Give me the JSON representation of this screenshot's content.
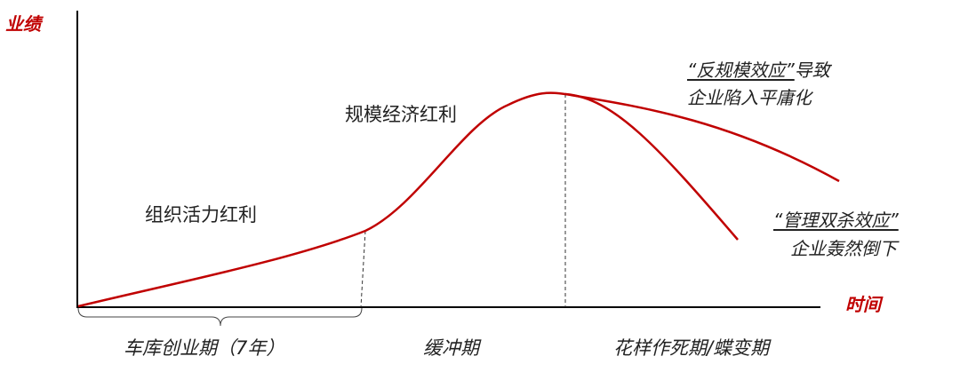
{
  "axes": {
    "y_label": "业绩",
    "x_label": "时间"
  },
  "colors": {
    "accent": "#c00000",
    "axis": "#000000",
    "guide": "#333333"
  },
  "stages": [
    {
      "label": "车库创业期（7年）"
    },
    {
      "label": "缓冲期"
    },
    {
      "label": "花样作死期/蝶变期"
    }
  ],
  "bonuses": {
    "org_vitality": "组织活力红利",
    "scale": "规模经济红利"
  },
  "notes": {
    "anti_scale": {
      "highlight": "“反规模效应”",
      "suffix": "导致",
      "line2": "企业陷入平庸化"
    },
    "mgmt_double_kill": {
      "highlight": "“管理双杀效应”",
      "line2": "企业轰然倒下"
    }
  }
}
